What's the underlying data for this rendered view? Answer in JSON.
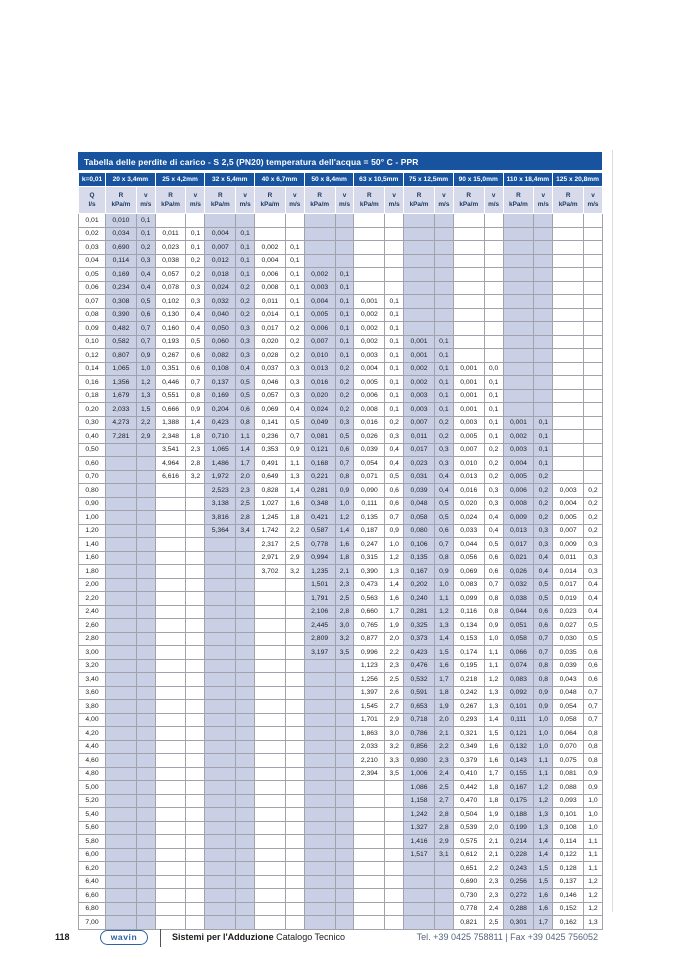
{
  "page": {
    "number": "118",
    "footer": {
      "logo": "wavin",
      "series_bold": "Sistemi per l'Adduzione",
      "series_regular": "Catalogo Tecnico",
      "contact": "Tel. +39 0425 758811 | Fax +39 0425 756052"
    }
  },
  "colors": {
    "header_blue": "#17539f",
    "subheader_bg": "#d6daea",
    "shaded_column_bg": "#c9cfe4",
    "grid_line": "#a2a2aa",
    "logo_blue": "#2a63a5",
    "contact_text": "#55657e"
  },
  "table": {
    "title": "Tabella delle perdite di carico  - S 2,5 (PN20) temperatura dell'acqua = 50° C - PPR",
    "k_label": "k=0,01",
    "size_columns": [
      "20 x 3,4mm",
      "25 x 4,2mm",
      "32 x 5,4mm",
      "40 x 6,7mm",
      "50 x 8,4mm",
      "63 x 10,5mm",
      "75 x 12,5mm",
      "90 x 15,0mm",
      "110 x 18,4mm",
      "125 x 20,8mm"
    ],
    "q_header": {
      "top": "Q",
      "bottom": "l/s"
    },
    "r_header": {
      "top": "R",
      "bottom": "kPa/m"
    },
    "v_header": {
      "top": "v",
      "bottom": "m/s"
    },
    "rows": [
      [
        "0,01",
        "0,010",
        "0,1",
        "",
        "",
        "",
        "",
        "",
        "",
        "",
        "",
        "",
        "",
        "",
        "",
        "",
        "",
        "",
        "",
        "",
        ""
      ],
      [
        "0,02",
        "0,034",
        "0,1",
        "0,011",
        "0,1",
        "0,004",
        "0,1",
        "",
        "",
        "",
        "",
        "",
        "",
        "",
        "",
        "",
        "",
        "",
        "",
        "",
        ""
      ],
      [
        "0,03",
        "0,690",
        "0,2",
        "0,023",
        "0,1",
        "0,007",
        "0,1",
        "0,002",
        "0,1",
        "",
        "",
        "",
        "",
        "",
        "",
        "",
        "",
        "",
        "",
        "",
        ""
      ],
      [
        "0,04",
        "0,114",
        "0,3",
        "0,038",
        "0,2",
        "0,012",
        "0,1",
        "0,004",
        "0,1",
        "",
        "",
        "",
        "",
        "",
        "",
        "",
        "",
        "",
        "",
        "",
        ""
      ],
      [
        "0,05",
        "0,169",
        "0,4",
        "0,057",
        "0,2",
        "0,018",
        "0,1",
        "0,006",
        "0,1",
        "0,002",
        "0,1",
        "",
        "",
        "",
        "",
        "",
        "",
        "",
        "",
        "",
        ""
      ],
      [
        "0,06",
        "0,234",
        "0,4",
        "0,078",
        "0,3",
        "0,024",
        "0,2",
        "0,008",
        "0,1",
        "0,003",
        "0,1",
        "",
        "",
        "",
        "",
        "",
        "",
        "",
        "",
        "",
        ""
      ],
      [
        "0,07",
        "0,308",
        "0,5",
        "0,102",
        "0,3",
        "0,032",
        "0,2",
        "0,011",
        "0,1",
        "0,004",
        "0,1",
        "0,001",
        "0,1",
        "",
        "",
        "",
        "",
        "",
        "",
        "",
        ""
      ],
      [
        "0,08",
        "0,390",
        "0,6",
        "0,130",
        "0,4",
        "0,040",
        "0,2",
        "0,014",
        "0,1",
        "0,005",
        "0,1",
        "0,002",
        "0,1",
        "",
        "",
        "",
        "",
        "",
        "",
        "",
        ""
      ],
      [
        "0,09",
        "0,482",
        "0,7",
        "0,160",
        "0,4",
        "0,050",
        "0,3",
        "0,017",
        "0,2",
        "0,006",
        "0,1",
        "0,002",
        "0,1",
        "",
        "",
        "",
        "",
        "",
        "",
        "",
        ""
      ],
      [
        "0,10",
        "0,582",
        "0,7",
        "0,193",
        "0,5",
        "0,060",
        "0,3",
        "0,020",
        "0,2",
        "0,007",
        "0,1",
        "0,002",
        "0,1",
        "0,001",
        "0,1",
        "",
        "",
        "",
        "",
        "",
        ""
      ],
      [
        "0,12",
        "0,807",
        "0,9",
        "0,267",
        "0,6",
        "0,082",
        "0,3",
        "0,028",
        "0,2",
        "0,010",
        "0,1",
        "0,003",
        "0,1",
        "0,001",
        "0,1",
        "",
        "",
        "",
        "",
        "",
        ""
      ],
      [
        "0,14",
        "1,065",
        "1,0",
        "0,351",
        "0,6",
        "0,108",
        "0,4",
        "0,037",
        "0,3",
        "0,013",
        "0,2",
        "0,004",
        "0,1",
        "0,002",
        "0,1",
        "0,001",
        "0,0",
        "",
        "",
        "",
        ""
      ],
      [
        "0,16",
        "1,356",
        "1,2",
        "0,446",
        "0,7",
        "0,137",
        "0,5",
        "0,046",
        "0,3",
        "0,016",
        "0,2",
        "0,005",
        "0,1",
        "0,002",
        "0,1",
        "0,001",
        "0,1",
        "",
        "",
        "",
        ""
      ],
      [
        "0,18",
        "1,679",
        "1,3",
        "0,551",
        "0,8",
        "0,169",
        "0,5",
        "0,057",
        "0,3",
        "0,020",
        "0,2",
        "0,006",
        "0,1",
        "0,003",
        "0,1",
        "0,001",
        "0,1",
        "",
        "",
        "",
        ""
      ],
      [
        "0,20",
        "2,033",
        "1,5",
        "0,666",
        "0,9",
        "0,204",
        "0,6",
        "0,069",
        "0,4",
        "0,024",
        "0,2",
        "0,008",
        "0,1",
        "0,003",
        "0,1",
        "0,001",
        "0,1",
        "",
        "",
        "",
        ""
      ],
      [
        "0,30",
        "4,273",
        "2,2",
        "1,388",
        "1,4",
        "0,423",
        "0,8",
        "0,141",
        "0,5",
        "0,049",
        "0,3",
        "0,016",
        "0,2",
        "0,007",
        "0,2",
        "0,003",
        "0,1",
        "0,001",
        "0,1",
        "",
        ""
      ],
      [
        "0,40",
        "7,281",
        "2,9",
        "2,348",
        "1,8",
        "0,710",
        "1,1",
        "0,236",
        "0,7",
        "0,081",
        "0,5",
        "0,026",
        "0,3",
        "0,011",
        "0,2",
        "0,005",
        "0,1",
        "0,002",
        "0,1",
        "",
        ""
      ],
      [
        "0,50",
        "",
        "",
        "3,541",
        "2,3",
        "1,065",
        "1,4",
        "0,353",
        "0,9",
        "0,121",
        "0,6",
        "0,039",
        "0,4",
        "0,017",
        "0,3",
        "0,007",
        "0,2",
        "0,003",
        "0,1",
        "",
        ""
      ],
      [
        "0,60",
        "",
        "",
        "4,964",
        "2,8",
        "1,486",
        "1,7",
        "0,491",
        "1,1",
        "0,168",
        "0,7",
        "0,054",
        "0,4",
        "0,023",
        "0,3",
        "0,010",
        "0,2",
        "0,004",
        "0,1",
        "",
        ""
      ],
      [
        "0,70",
        "",
        "",
        "6,616",
        "3,2",
        "1,972",
        "2,0",
        "0,649",
        "1,3",
        "0,221",
        "0,8",
        "0,071",
        "0,5",
        "0,031",
        "0,4",
        "0,013",
        "0,2",
        "0,005",
        "0,2",
        "",
        ""
      ],
      [
        "0,80",
        "",
        "",
        "",
        "",
        "2,523",
        "2,3",
        "0,828",
        "1,4",
        "0,281",
        "0,9",
        "0,090",
        "0,6",
        "0,039",
        "0,4",
        "0,016",
        "0,3",
        "0,006",
        "0,2",
        "0,003",
        "0,2"
      ],
      [
        "0,90",
        "",
        "",
        "",
        "",
        "3,138",
        "2,5",
        "1,027",
        "1,6",
        "0,348",
        "1,0",
        "0,111",
        "0,6",
        "0,048",
        "0,5",
        "0,020",
        "0,3",
        "0,008",
        "0,2",
        "0,004",
        "0,2"
      ],
      [
        "1,00",
        "",
        "",
        "",
        "",
        "3,816",
        "2,8",
        "1,245",
        "1,8",
        "0,421",
        "1,2",
        "0,135",
        "0,7",
        "0,058",
        "0,5",
        "0,024",
        "0,4",
        "0,009",
        "0,2",
        "0,005",
        "0,2"
      ],
      [
        "1,20",
        "",
        "",
        "",
        "",
        "5,364",
        "3,4",
        "1,742",
        "2,2",
        "0,587",
        "1,4",
        "0,187",
        "0,9",
        "0,080",
        "0,6",
        "0,033",
        "0,4",
        "0,013",
        "0,3",
        "0,007",
        "0,2"
      ],
      [
        "1,40",
        "",
        "",
        "",
        "",
        "",
        "",
        "2,317",
        "2,5",
        "0,778",
        "1,6",
        "0,247",
        "1,0",
        "0,106",
        "0,7",
        "0,044",
        "0,5",
        "0,017",
        "0,3",
        "0,009",
        "0,3"
      ],
      [
        "1,60",
        "",
        "",
        "",
        "",
        "",
        "",
        "2,971",
        "2,9",
        "0,994",
        "1,8",
        "0,315",
        "1,2",
        "0,135",
        "0,8",
        "0,056",
        "0,6",
        "0,021",
        "0,4",
        "0,011",
        "0,3"
      ],
      [
        "1,80",
        "",
        "",
        "",
        "",
        "",
        "",
        "3,702",
        "3,2",
        "1,235",
        "2,1",
        "0,390",
        "1,3",
        "0,167",
        "0,9",
        "0,069",
        "0,6",
        "0,026",
        "0,4",
        "0,014",
        "0,3"
      ],
      [
        "2,00",
        "",
        "",
        "",
        "",
        "",
        "",
        "",
        "",
        "1,501",
        "2,3",
        "0,473",
        "1,4",
        "0,202",
        "1,0",
        "0,083",
        "0,7",
        "0,032",
        "0,5",
        "0,017",
        "0,4"
      ],
      [
        "2,20",
        "",
        "",
        "",
        "",
        "",
        "",
        "",
        "",
        "1,791",
        "2,5",
        "0,563",
        "1,6",
        "0,240",
        "1,1",
        "0,099",
        "0,8",
        "0,038",
        "0,5",
        "0,019",
        "0,4"
      ],
      [
        "2,40",
        "",
        "",
        "",
        "",
        "",
        "",
        "",
        "",
        "2,106",
        "2,8",
        "0,660",
        "1,7",
        "0,281",
        "1,2",
        "0,116",
        "0,8",
        "0,044",
        "0,6",
        "0,023",
        "0,4"
      ],
      [
        "2,60",
        "",
        "",
        "",
        "",
        "",
        "",
        "",
        "",
        "2,445",
        "3,0",
        "0,765",
        "1,9",
        "0,325",
        "1,3",
        "0,134",
        "0,9",
        "0,051",
        "0,6",
        "0,027",
        "0,5"
      ],
      [
        "2,80",
        "",
        "",
        "",
        "",
        "",
        "",
        "",
        "",
        "2,809",
        "3,2",
        "0,877",
        "2,0",
        "0,373",
        "1,4",
        "0,153",
        "1,0",
        "0,058",
        "0,7",
        "0,030",
        "0,5"
      ],
      [
        "3,00",
        "",
        "",
        "",
        "",
        "",
        "",
        "",
        "",
        "3,197",
        "3,5",
        "0,996",
        "2,2",
        "0,423",
        "1,5",
        "0,174",
        "1,1",
        "0,066",
        "0,7",
        "0,035",
        "0,6"
      ],
      [
        "3,20",
        "",
        "",
        "",
        "",
        "",
        "",
        "",
        "",
        "",
        "",
        "1,123",
        "2,3",
        "0,476",
        "1,6",
        "0,195",
        "1,1",
        "0,074",
        "0,8",
        "0,039",
        "0,6"
      ],
      [
        "3,40",
        "",
        "",
        "",
        "",
        "",
        "",
        "",
        "",
        "",
        "",
        "1,256",
        "2,5",
        "0,532",
        "1,7",
        "0,218",
        "1,2",
        "0,083",
        "0,8",
        "0,043",
        "0,6"
      ],
      [
        "3,60",
        "",
        "",
        "",
        "",
        "",
        "",
        "",
        "",
        "",
        "",
        "1,397",
        "2,6",
        "0,591",
        "1,8",
        "0,242",
        "1,3",
        "0,092",
        "0,9",
        "0,048",
        "0,7"
      ],
      [
        "3,80",
        "",
        "",
        "",
        "",
        "",
        "",
        "",
        "",
        "",
        "",
        "1,545",
        "2,7",
        "0,653",
        "1,9",
        "0,267",
        "1,3",
        "0,101",
        "0,9",
        "0,054",
        "0,7"
      ],
      [
        "4,00",
        "",
        "",
        "",
        "",
        "",
        "",
        "",
        "",
        "",
        "",
        "1,701",
        "2,9",
        "0,718",
        "2,0",
        "0,293",
        "1,4",
        "0,111",
        "1,0",
        "0,058",
        "0,7"
      ],
      [
        "4,20",
        "",
        "",
        "",
        "",
        "",
        "",
        "",
        "",
        "",
        "",
        "1,863",
        "3,0",
        "0,786",
        "2,1",
        "0,321",
        "1,5",
        "0,121",
        "1,0",
        "0,064",
        "0,8"
      ],
      [
        "4,40",
        "",
        "",
        "",
        "",
        "",
        "",
        "",
        "",
        "",
        "",
        "2,033",
        "3,2",
        "0,856",
        "2,2",
        "0,349",
        "1,6",
        "0,132",
        "1,0",
        "0,070",
        "0,8"
      ],
      [
        "4,60",
        "",
        "",
        "",
        "",
        "",
        "",
        "",
        "",
        "",
        "",
        "2,210",
        "3,3",
        "0,930",
        "2,3",
        "0,379",
        "1,6",
        "0,143",
        "1,1",
        "0,075",
        "0,8"
      ],
      [
        "4,80",
        "",
        "",
        "",
        "",
        "",
        "",
        "",
        "",
        "",
        "",
        "2,394",
        "3,5",
        "1,006",
        "2,4",
        "0,410",
        "1,7",
        "0,155",
        "1,1",
        "0,081",
        "0,9"
      ],
      [
        "5,00",
        "",
        "",
        "",
        "",
        "",
        "",
        "",
        "",
        "",
        "",
        "",
        "",
        "1,086",
        "2,5",
        "0,442",
        "1,8",
        "0,167",
        "1,2",
        "0,088",
        "0,9"
      ],
      [
        "5,20",
        "",
        "",
        "",
        "",
        "",
        "",
        "",
        "",
        "",
        "",
        "",
        "",
        "1,158",
        "2,7",
        "0,470",
        "1,8",
        "0,175",
        "1,2",
        "0,093",
        "1,0"
      ],
      [
        "5,40",
        "",
        "",
        "",
        "",
        "",
        "",
        "",
        "",
        "",
        "",
        "",
        "",
        "1,242",
        "2,8",
        "0,504",
        "1,9",
        "0,188",
        "1,3",
        "0,101",
        "1,0"
      ],
      [
        "5,60",
        "",
        "",
        "",
        "",
        "",
        "",
        "",
        "",
        "",
        "",
        "",
        "",
        "1,327",
        "2,8",
        "0,539",
        "2,0",
        "0,199",
        "1,3",
        "0,108",
        "1,0"
      ],
      [
        "5,80",
        "",
        "",
        "",
        "",
        "",
        "",
        "",
        "",
        "",
        "",
        "",
        "",
        "1,416",
        "2,9",
        "0,575",
        "2,1",
        "0,214",
        "1,4",
        "0,114",
        "1,1"
      ],
      [
        "6,00",
        "",
        "",
        "",
        "",
        "",
        "",
        "",
        "",
        "",
        "",
        "",
        "",
        "1,517",
        "3,1",
        "0,612",
        "2,1",
        "0,228",
        "1,4",
        "0,122",
        "1,1"
      ],
      [
        "6,20",
        "",
        "",
        "",
        "",
        "",
        "",
        "",
        "",
        "",
        "",
        "",
        "",
        "",
        "",
        "0,651",
        "2,2",
        "0,243",
        "1,5",
        "0,128",
        "1,1"
      ],
      [
        "6,40",
        "",
        "",
        "",
        "",
        "",
        "",
        "",
        "",
        "",
        "",
        "",
        "",
        "",
        "",
        "0,690",
        "2,3",
        "0,256",
        "1,5",
        "0,137",
        "1,2"
      ],
      [
        "6,60",
        "",
        "",
        "",
        "",
        "",
        "",
        "",
        "",
        "",
        "",
        "",
        "",
        "",
        "",
        "0,730",
        "2,3",
        "0,272",
        "1,6",
        "0,146",
        "1,2"
      ],
      [
        "6,80",
        "",
        "",
        "",
        "",
        "",
        "",
        "",
        "",
        "",
        "",
        "",
        "",
        "",
        "",
        "0,778",
        "2,4",
        "0,288",
        "1,6",
        "0,152",
        "1,2"
      ],
      [
        "7,00",
        "",
        "",
        "",
        "",
        "",
        "",
        "",
        "",
        "",
        "",
        "",
        "",
        "",
        "",
        "0,821",
        "2,5",
        "0,301",
        "1,7",
        "0,162",
        "1,3"
      ]
    ]
  }
}
